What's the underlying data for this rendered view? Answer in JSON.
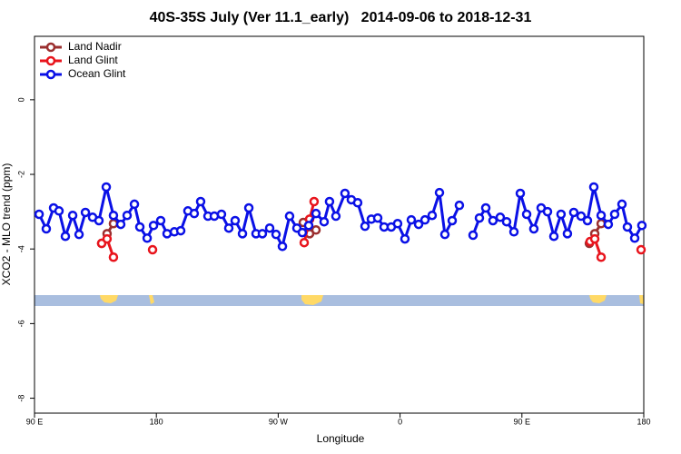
{
  "chart_data": {
    "type": "line",
    "title": "40S-35S July (Ver 11.1_early)   2014-09-06 to 2018-12-31",
    "x_label": "Longitude",
    "y_label": "XCO2 - MLO trend (ppm)",
    "xlim": [
      90,
      540
    ],
    "ylim": [
      -8.4,
      1.7
    ],
    "xticks": [
      {
        "value": 90,
        "label": "90 E"
      },
      180,
      {
        "value": 270,
        "label": "90 W"
      },
      {
        "value": 360,
        "label": "0"
      },
      {
        "value": 450,
        "label": "90 E"
      },
      {
        "value": 540,
        "label": "180"
      }
    ],
    "yticks": [
      0,
      -2,
      -4,
      -6,
      -8
    ],
    "legend": "top-left",
    "series": [
      {
        "name": "Land Nadir",
        "color": "#9b2f2f",
        "x": [
          139.6,
          143.6,
          148.3,
          null,
          288.5,
          293.2,
          297.9,
          null,
          499.8,
          503.8,
          508.5
        ],
        "values": [
          -3.85,
          -3.59,
          -3.32,
          null,
          -3.29,
          -3.59,
          -3.49,
          null,
          -3.85,
          -3.59,
          -3.32
        ]
      },
      {
        "name": "Land Glint",
        "color": "#e8141c",
        "x": [
          139.6,
          143.6,
          148.3,
          null,
          177.2,
          null,
          289.2,
          293.2,
          296.5,
          null,
          500.4,
          503.8,
          508.5,
          null,
          538
        ],
        "values": [
          -3.85,
          -3.73,
          -4.22,
          null,
          -4.02,
          null,
          -3.83,
          -3.2,
          -2.73,
          null,
          -3.8,
          -3.73,
          -4.22,
          null,
          -4.02
        ]
      },
      {
        "name": "Ocean Glint",
        "color": "#0a10e6",
        "x": [
          93.4,
          98.7,
          104.1,
          108.1,
          112.8,
          118.2,
          122.9,
          127.6,
          132.9,
          137.6,
          143,
          148.3,
          153.7,
          158.4,
          163.8,
          167.8,
          173.2,
          177.9,
          183.2,
          187.9,
          193.3,
          198,
          203.3,
          208,
          212.7,
          218.1,
          222.8,
          228.1,
          233.5,
          238.2,
          243.6,
          248.3,
          253.6,
          258.3,
          263.7,
          268.4,
          273.1,
          278.4,
          283.8,
          287.8,
          292.5,
          297.9,
          303.9,
          307.9,
          312.6,
          319.3,
          324,
          328.7,
          334.1,
          338.8,
          343.5,
          348.2,
          353.5,
          358.2,
          363.6,
          368.3,
          373.7,
          378.4,
          383.7,
          389.1,
          393.1,
          398.5,
          403.8,
          null,
          413.9,
          418.6,
          423.3,
          428.6,
          434,
          438.7,
          444.1,
          448.8,
          453.5,
          458.8,
          464.2,
          468.9,
          473.6,
          478.9,
          483.6,
          488.3,
          493.7,
          498.4,
          503.1,
          508.5,
          513.8,
          518.5,
          523.9,
          527.9,
          533.3,
          538.6
        ],
        "values": [
          -3.07,
          -3.46,
          -2.9,
          -2.98,
          -3.66,
          -3.1,
          -3.61,
          -3.02,
          -3.15,
          -3.24,
          -2.34,
          -3.1,
          -3.34,
          -3.1,
          -2.8,
          -3.41,
          -3.71,
          -3.37,
          -3.24,
          -3.59,
          -3.54,
          -3.51,
          -2.98,
          -3.05,
          -2.73,
          -3.12,
          -3.12,
          -3.07,
          -3.44,
          -3.24,
          -3.59,
          -2.9,
          -3.59,
          -3.59,
          -3.44,
          -3.61,
          -3.93,
          -3.12,
          -3.44,
          -3.56,
          -3.37,
          -3.05,
          -3.27,
          -2.73,
          -3.12,
          -2.51,
          -2.68,
          -2.76,
          -3.39,
          -3.2,
          -3.17,
          -3.41,
          -3.41,
          -3.32,
          -3.73,
          -3.22,
          -3.34,
          -3.22,
          -3.1,
          -2.49,
          -3.61,
          -3.24,
          -2.83,
          null,
          -3.63,
          -3.17,
          -2.9,
          -3.24,
          -3.15,
          -3.27,
          -3.54,
          -2.51,
          -3.07,
          -3.46,
          -2.9,
          -3.0,
          -3.66,
          -3.07,
          -3.59,
          -3.02,
          -3.12,
          -3.24,
          -2.34,
          -3.1,
          -3.34,
          -3.07,
          -2.8,
          -3.41,
          -3.71,
          -3.37
        ]
      }
    ]
  }
}
